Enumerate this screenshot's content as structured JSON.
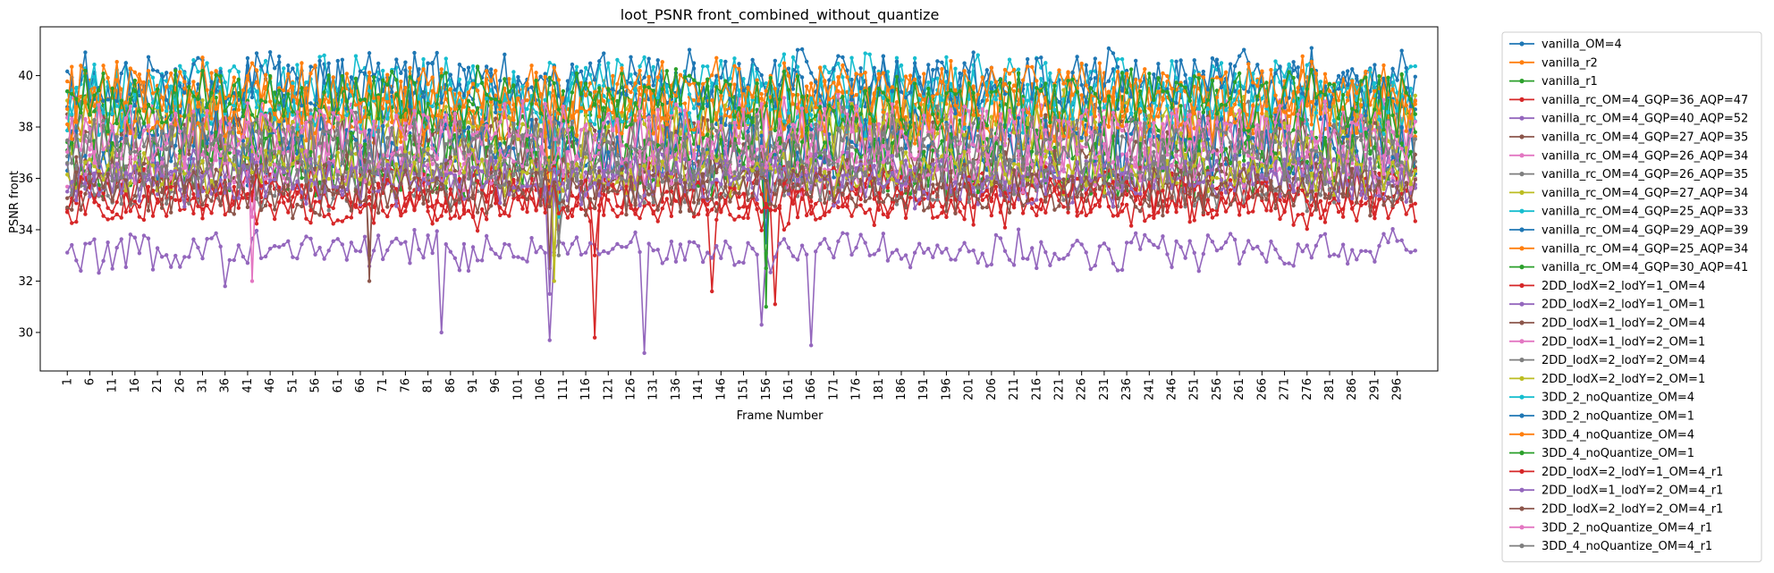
{
  "chart_data": {
    "type": "line",
    "title": "loot_PSNR front_combined_without_quantize",
    "xlabel": "Frame Number",
    "ylabel": "PSNR front",
    "xlim": [
      -5,
      305
    ],
    "ylim": [
      28.5,
      41.9
    ],
    "x_ticks": [
      1,
      6,
      11,
      16,
      21,
      26,
      31,
      36,
      41,
      46,
      51,
      56,
      61,
      66,
      71,
      76,
      81,
      86,
      91,
      96,
      101,
      106,
      111,
      116,
      121,
      126,
      131,
      136,
      141,
      146,
      151,
      156,
      161,
      166,
      171,
      176,
      181,
      186,
      191,
      196,
      201,
      206,
      211,
      216,
      221,
      226,
      231,
      236,
      241,
      246,
      251,
      256,
      261,
      266,
      271,
      276,
      281,
      286,
      291,
      296
    ],
    "y_ticks": [
      30,
      32,
      34,
      36,
      38,
      40
    ],
    "n_frames": 300,
    "legend": "outside-right",
    "grid": false,
    "markers": "dot",
    "series": [
      {
        "name": "vanilla_OM=4",
        "color": "#1f77b4",
        "mean": 39.2,
        "amp": 1.3,
        "dips": [
          [
            120,
            36.5
          ],
          [
            156,
            35.0
          ]
        ]
      },
      {
        "name": "vanilla_r2",
        "color": "#ff7f0e",
        "mean": 38.6,
        "amp": 1.3,
        "dips": [
          [
            108,
            35.0
          ],
          [
            156,
            34.5
          ]
        ]
      },
      {
        "name": "vanilla_r1",
        "color": "#2ca02c",
        "mean": 38.1,
        "amp": 1.4,
        "dips": [
          [
            156,
            31.0
          ]
        ]
      },
      {
        "name": "vanilla_rc_OM=4_GQP=36_AQP=47",
        "color": "#d62728",
        "mean": 34.9,
        "amp": 0.7,
        "dips": [
          [
            118,
            29.8
          ],
          [
            144,
            31.6
          ],
          [
            158,
            31.1
          ]
        ]
      },
      {
        "name": "vanilla_rc_OM=4_GQP=40_AQP=52",
        "color": "#9467bd",
        "mean": 33.2,
        "amp": 0.6,
        "dips": [
          [
            36,
            31.8
          ],
          [
            84,
            30.0
          ],
          [
            108,
            29.7
          ],
          [
            129,
            29.2
          ],
          [
            155,
            30.3
          ],
          [
            166,
            29.5
          ]
        ]
      },
      {
        "name": "vanilla_rc_OM=4_GQP=27_AQP=35",
        "color": "#8c564b",
        "mean": 37.3,
        "amp": 1.2,
        "dips": [
          [
            68,
            32.0
          ],
          [
            108,
            32.5
          ]
        ]
      },
      {
        "name": "vanilla_rc_OM=4_GQP=26_AQP=34",
        "color": "#e377c2",
        "mean": 37.8,
        "amp": 1.3,
        "dips": [
          [
            42,
            32.0
          ]
        ]
      },
      {
        "name": "vanilla_rc_OM=4_GQP=26_AQP=35",
        "color": "#7f7f7f",
        "mean": 37.5,
        "amp": 1.3,
        "dips": [
          [
            110,
            33.0
          ]
        ]
      },
      {
        "name": "vanilla_rc_OM=4_GQP=27_AQP=34",
        "color": "#bcbd22",
        "mean": 38.0,
        "amp": 1.3,
        "dips": [
          [
            109,
            32.0
          ]
        ]
      },
      {
        "name": "vanilla_rc_OM=4_GQP=25_AQP=33",
        "color": "#17becf",
        "mean": 39.0,
        "amp": 1.2,
        "dips": [
          [
            110,
            34.5
          ]
        ]
      },
      {
        "name": "vanilla_rc_OM=4_GQP=29_AQP=39",
        "color": "#1f77b4",
        "mean": 37.2,
        "amp": 1.3,
        "dips": [
          [
            156,
            33.5
          ]
        ]
      },
      {
        "name": "vanilla_rc_OM=4_GQP=25_AQP=34",
        "color": "#ff7f0e",
        "mean": 38.8,
        "amp": 1.2,
        "dips": [
          [
            108,
            35.0
          ]
        ]
      },
      {
        "name": "vanilla_rc_OM=4_GQP=30_AQP=41",
        "color": "#2ca02c",
        "mean": 36.6,
        "amp": 1.2,
        "dips": [
          [
            156,
            32.5
          ]
        ]
      },
      {
        "name": "2DD_lodX=2_lodY=1_OM=4",
        "color": "#d62728",
        "mean": 35.7,
        "amp": 0.8,
        "dips": [
          [
            118,
            33.0
          ]
        ]
      },
      {
        "name": "2DD_lodX=2_lodY=1_OM=1",
        "color": "#9467bd",
        "mean": 36.2,
        "amp": 0.8,
        "dips": [
          [
            108,
            31.5
          ]
        ]
      },
      {
        "name": "2DD_lodX=1_lodY=2_OM=4",
        "color": "#8c564b",
        "mean": 36.0,
        "amp": 0.8,
        "dips": [
          [
            68,
            33.0
          ]
        ]
      },
      {
        "name": "2DD_lodX=1_lodY=2_OM=1",
        "color": "#e377c2",
        "mean": 36.4,
        "amp": 0.8,
        "dips": [
          [
            42,
            34.5
          ]
        ]
      },
      {
        "name": "2DD_lodX=2_lodY=2_OM=4",
        "color": "#7f7f7f",
        "mean": 35.8,
        "amp": 0.8,
        "dips": [
          [
            110,
            33.5
          ]
        ]
      },
      {
        "name": "2DD_lodX=2_lodY=2_OM=1",
        "color": "#bcbd22",
        "mean": 36.3,
        "amp": 0.8,
        "dips": [
          [
            109,
            33.0
          ]
        ]
      },
      {
        "name": "3DD_2_noQuantize_OM=4",
        "color": "#17becf",
        "mean": 39.6,
        "amp": 1.1,
        "dips": []
      },
      {
        "name": "3DD_2_noQuantize_OM=1",
        "color": "#1f77b4",
        "mean": 39.8,
        "amp": 1.1,
        "dips": []
      },
      {
        "name": "3DD_4_noQuantize_OM=4",
        "color": "#ff7f0e",
        "mean": 39.4,
        "amp": 1.1,
        "dips": []
      },
      {
        "name": "3DD_4_noQuantize_OM=1",
        "color": "#2ca02c",
        "mean": 39.0,
        "amp": 1.1,
        "dips": []
      },
      {
        "name": "2DD_lodX=2_lodY=1_OM=4_r1",
        "color": "#d62728",
        "mean": 35.2,
        "amp": 0.7,
        "dips": []
      },
      {
        "name": "2DD_lodX=1_lodY=2_OM=4_r1",
        "color": "#9467bd",
        "mean": 35.9,
        "amp": 0.8,
        "dips": []
      },
      {
        "name": "2DD_lodX=2_lodY=2_OM=4_r1",
        "color": "#8c564b",
        "mean": 35.5,
        "amp": 0.8,
        "dips": []
      },
      {
        "name": "3DD_2_noQuantize_OM=4_r1",
        "color": "#e377c2",
        "mean": 37.6,
        "amp": 1.2,
        "dips": []
      },
      {
        "name": "3DD_4_noQuantize_OM=4_r1",
        "color": "#7f7f7f",
        "mean": 37.0,
        "amp": 1.2,
        "dips": []
      }
    ]
  }
}
